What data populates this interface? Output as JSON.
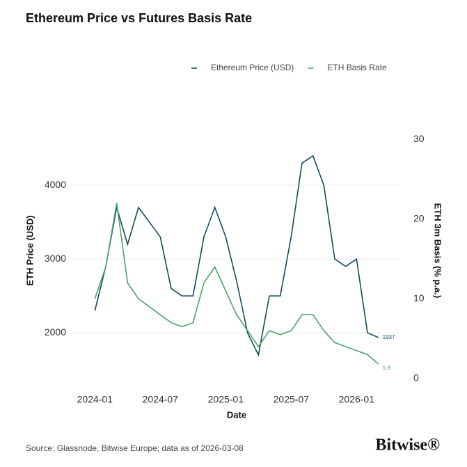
{
  "chart_data": {
    "type": "line",
    "title": "Ethereum Price vs Futures Basis Rate",
    "x_label": "Date",
    "y_label": "ETH Price (USD)",
    "y2_label": "ETH 3m Basis (% p.a.)",
    "source": "Source: Glassnode, Bitwise Europe; data as of 2026-03-08",
    "brand": "Bitwise®",
    "legend": "top-right",
    "grid": true,
    "x": [
      "2024-01",
      "2024-02",
      "2024-03",
      "2024-04",
      "2024-05",
      "2024-06",
      "2024-07",
      "2024-08",
      "2024-09",
      "2024-10",
      "2024-11",
      "2024-12",
      "2025-01",
      "2025-02",
      "2025-03",
      "2025-04",
      "2025-05",
      "2025-06",
      "2025-07",
      "2025-08",
      "2025-09",
      "2025-10",
      "2025-11",
      "2025-12",
      "2026-01",
      "2026-02",
      "2026-03"
    ],
    "xlim": [
      "2023-11",
      "2026-05"
    ],
    "xticks": [
      "2024-01",
      "2024-07",
      "2025-01",
      "2025-07",
      "2026-01"
    ],
    "ylim": [
      1370,
      4860
    ],
    "yticks": [
      2000,
      3000,
      4000
    ],
    "y2lim": [
      -0.1,
      32.2
    ],
    "y2ticks": [
      0,
      10,
      20,
      30
    ],
    "series": [
      {
        "name": "Ethereum Price (USD)",
        "color": "#0f4c5c",
        "values": [
          2300,
          2900,
          3700,
          3200,
          3700,
          3500,
          3300,
          2600,
          2500,
          2500,
          3300,
          3700,
          3300,
          2700,
          2000,
          1700,
          2500,
          2500,
          3300,
          4300,
          4400,
          4000,
          3000,
          2900,
          3000,
          2000,
          1937
        ]
      },
      {
        "name": "ETH Basis Rate",
        "color": "#4aa468",
        "axis": "y2",
        "values": [
          10,
          14,
          22,
          12,
          10,
          9,
          8,
          7,
          6.5,
          7,
          12,
          14,
          11,
          8,
          6,
          4,
          6,
          5.5,
          6,
          8,
          8,
          6,
          4.5,
          4,
          3.5,
          3,
          1.8
        ]
      }
    ]
  }
}
